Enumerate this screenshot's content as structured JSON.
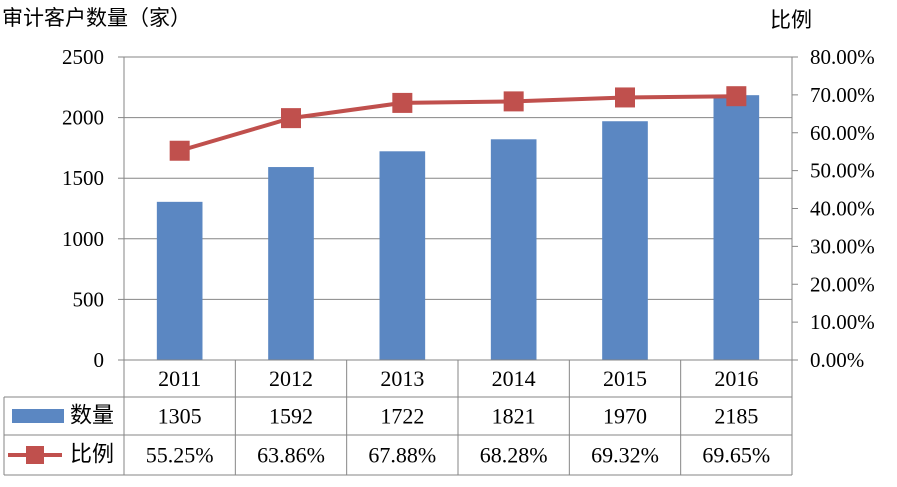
{
  "chart_data": {
    "type": "bar",
    "categories": [
      "2011",
      "2012",
      "2013",
      "2014",
      "2015",
      "2016"
    ],
    "series": [
      {
        "name": "数量",
        "type": "bar",
        "axis": "left",
        "color": "#5b87c2",
        "values": [
          1305,
          1592,
          1722,
          1821,
          1970,
          2185
        ],
        "labels": [
          "1305",
          "1592",
          "1722",
          "1821",
          "1970",
          "2185"
        ]
      },
      {
        "name": "比例",
        "type": "line",
        "axis": "right",
        "color": "#c0504d",
        "values": [
          55.25,
          63.86,
          67.88,
          68.28,
          69.32,
          69.65
        ],
        "labels": [
          "55.25%",
          "63.86%",
          "67.88%",
          "68.28%",
          "69.32%",
          "69.65%"
        ]
      }
    ],
    "ylabel": "审计客户数量（家）",
    "y2label": "比例",
    "ylim": [
      0,
      2500
    ],
    "yticks": [
      "0",
      "500",
      "1000",
      "1500",
      "2000",
      "2500"
    ],
    "y2lim": [
      0,
      80
    ],
    "y2ticks": [
      "0.00%",
      "10.00%",
      "20.00%",
      "30.00%",
      "40.00%",
      "50.00%",
      "60.00%",
      "70.00%",
      "80.00%"
    ],
    "grid": true,
    "legend": "data-table",
    "data_table": true
  }
}
